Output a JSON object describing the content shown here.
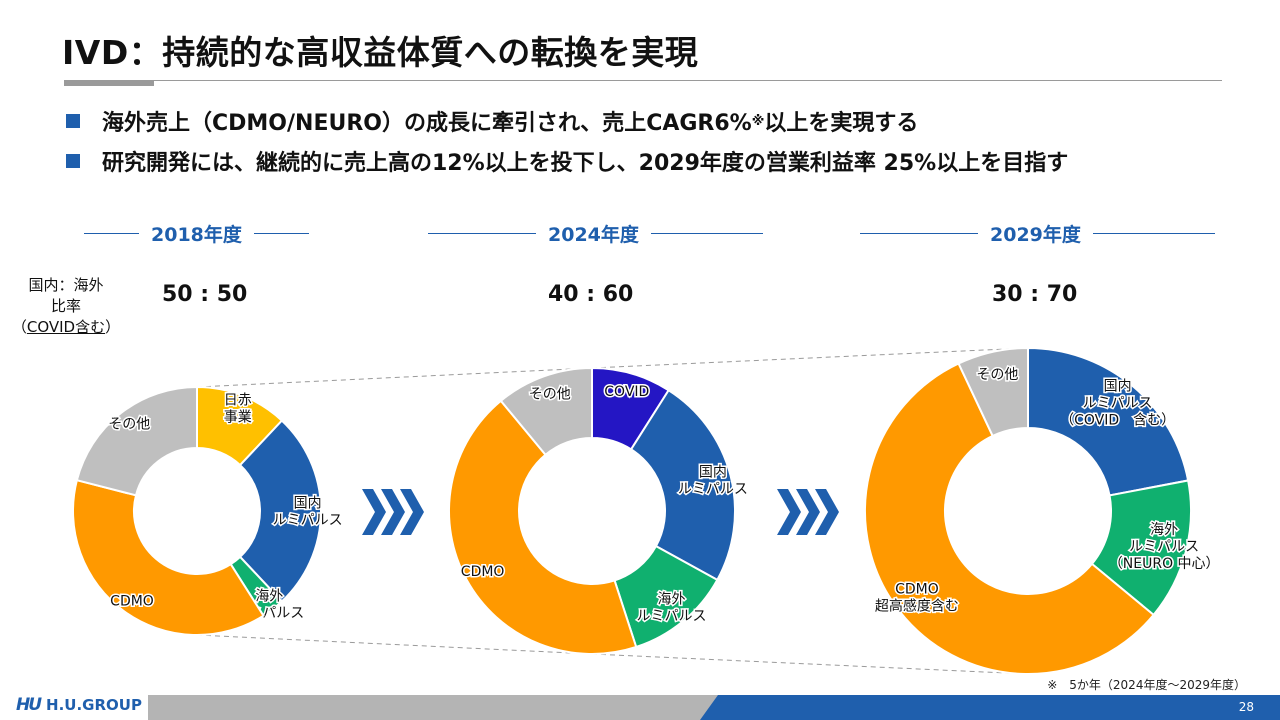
{
  "title": "IVD：持続的な高収益体質への転換を実現",
  "bullets": {
    "b1_text": "海外売上（CDMO/NEURO）の成長に牽引され、売上CAGR6%",
    "b1_sup": "※",
    "b1_tail": "以上を実現する",
    "b2_text": "研究開発には、継続的に売上高の12%以上を投下し、2029年度の営業利益率 25%以上を目指す"
  },
  "ratio_label": {
    "line1": "国内：海外",
    "line2": "比率",
    "line3_open": "（",
    "line3_u": "COVID含む",
    "line3_close": "）"
  },
  "years": [
    {
      "label": "2018年度",
      "ratio": "50 : 50"
    },
    {
      "label": "2024年度",
      "ratio": "40 : 60"
    },
    {
      "label": "2029年度",
      "ratio": "30 : 70"
    }
  ],
  "chart_data": [
    {
      "type": "pie",
      "title": "2018年度",
      "units": "share (%)",
      "slices": [
        {
          "label": "日赤\n事業",
          "value": 12,
          "color": "#ffc000"
        },
        {
          "label": "国内\nルミパルス",
          "value": 26,
          "color": "#1f5fad"
        },
        {
          "label": "海外\nルミパルス",
          "value": 3,
          "color": "#10b06f"
        },
        {
          "label": "CDMO",
          "value": 38,
          "color": "#ff9900"
        },
        {
          "label": "その他",
          "value": 21,
          "color": "#bfbfbf"
        }
      ]
    },
    {
      "type": "pie",
      "title": "2024年度",
      "units": "share (%)",
      "slices": [
        {
          "label": "COVID",
          "value": 9,
          "color": "#2416c4"
        },
        {
          "label": "国内\nルミパルス",
          "value": 24,
          "color": "#1f5fad"
        },
        {
          "label": "海外\nルミパルス",
          "value": 12,
          "color": "#10b06f"
        },
        {
          "label": "CDMO",
          "value": 44,
          "color": "#ff9900"
        },
        {
          "label": "その他",
          "value": 11,
          "color": "#bfbfbf"
        }
      ]
    },
    {
      "type": "pie",
      "title": "2029年度",
      "units": "share (%)",
      "slices": [
        {
          "label": "国内\nルミパルス\n（COVID　含む）",
          "value": 22,
          "color": "#1f5fad"
        },
        {
          "label": "海外\nルミパルス\n（NEURO 中心）",
          "value": 14,
          "color": "#10b06f"
        },
        {
          "label": "CDMO\n超高感度含む",
          "value": 57,
          "color": "#ff9900"
        },
        {
          "label": "その他",
          "value": 7,
          "color": "#bfbfbf"
        }
      ]
    }
  ],
  "footnote": "※　5か年（2024年度～2029年度）",
  "page_number": "28",
  "logo": {
    "mark": "HU",
    "text": "H.U.GROUP"
  }
}
